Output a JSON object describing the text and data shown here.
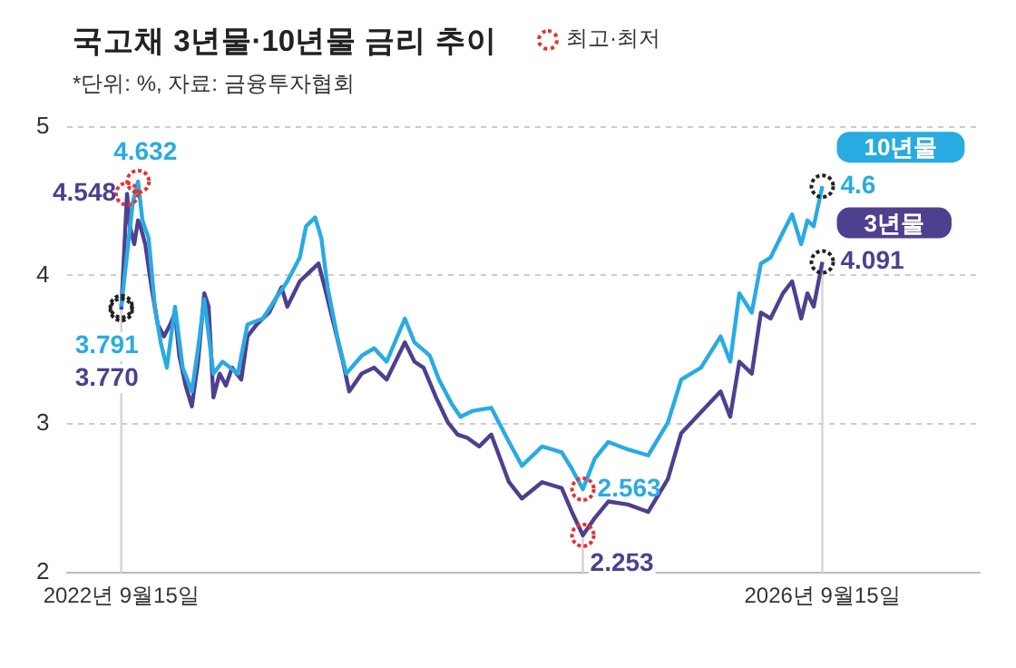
{
  "chart_data": {
    "type": "line",
    "title": "국고채 3년물·10년물 금리 추이",
    "subtitle": "*단위: %, 자료: 금융투자협회",
    "xlim": [
      "2022-05-26",
      "2027-08-09"
    ],
    "xticks": [
      {
        "value": "2022-09-15",
        "label": "2022년 9월15일"
      },
      {
        "value": "2026-09-15",
        "label": "2026년 9월15일"
      }
    ],
    "ylim": [
      2,
      5
    ],
    "yticks": [
      2,
      3,
      4,
      5
    ],
    "grid": "y",
    "legend": false,
    "marker": "none",
    "line_style": "solid",
    "ref_lines": [
      {
        "axis": "x",
        "value": "2022-09-15",
        "color": "#d4d4d4"
      },
      {
        "axis": "x",
        "value": "2025-05-04",
        "color": "#d4d4d4"
      },
      {
        "axis": "x",
        "value": "2026-09-15",
        "color": "#d4d4d4"
      }
    ],
    "series": [
      {
        "name": "10년물",
        "color": "#29abe2",
        "x": [
          "2022-09-15",
          "2022-10-09",
          "2022-10-20",
          "2022-10-29",
          "2022-11-11",
          "2022-11-24",
          "2022-12-06",
          "2022-12-19",
          "2023-01-05",
          "2023-01-21",
          "2023-02-09",
          "2023-02-22",
          "2023-03-07",
          "2023-03-26",
          "2023-04-14",
          "2023-05-16",
          "2023-06-05",
          "2023-07-07",
          "2023-08-02",
          "2023-08-27",
          "2023-09-22",
          "2023-10-05",
          "2023-10-24",
          "2023-11-06",
          "2023-11-19",
          "2023-12-09",
          "2023-12-28",
          "2024-01-29",
          "2024-02-24",
          "2024-03-21",
          "2024-04-28",
          "2024-05-18",
          "2024-06-19",
          "2024-07-08",
          "2024-08-03",
          "2024-08-22",
          "2024-09-17",
          "2024-10-25",
          "2024-12-01",
          "2024-12-28",
          "2025-02-08",
          "2025-03-21",
          "2025-04-11",
          "2025-05-04",
          "2025-05-29",
          "2025-06-26",
          "2025-08-06",
          "2025-09-17",
          "2025-10-28",
          "2025-11-25",
          "2026-01-05",
          "2026-02-15",
          "2026-03-07",
          "2026-03-26",
          "2026-04-21",
          "2026-05-10",
          "2026-05-30",
          "2026-06-25",
          "2026-07-14",
          "2026-08-02",
          "2026-08-15",
          "2026-08-28",
          "2026-09-15"
        ],
        "values": [
          3.791,
          4.49,
          4.632,
          4.37,
          4.25,
          3.79,
          3.55,
          3.38,
          3.79,
          3.38,
          3.22,
          3.51,
          3.84,
          3.34,
          3.42,
          3.34,
          3.67,
          3.71,
          3.84,
          3.96,
          4.12,
          4.33,
          4.39,
          4.25,
          3.92,
          3.59,
          3.34,
          3.46,
          3.51,
          3.42,
          3.71,
          3.55,
          3.46,
          3.3,
          3.14,
          3.05,
          3.09,
          3.11,
          2.88,
          2.72,
          2.85,
          2.81,
          2.7,
          2.563,
          2.77,
          2.88,
          2.83,
          2.79,
          3.01,
          3.3,
          3.38,
          3.59,
          3.42,
          3.88,
          3.75,
          4.08,
          4.12,
          4.29,
          4.41,
          4.21,
          4.37,
          4.33,
          4.6
        ]
      },
      {
        "name": "3년물",
        "color": "#4f3f8f",
        "x": [
          "2022-09-15",
          "2022-09-27",
          "2022-10-03",
          "2022-10-12",
          "2022-10-20",
          "2022-10-25",
          "2022-11-04",
          "2022-11-17",
          "2022-11-30",
          "2022-12-13",
          "2022-12-26",
          "2023-01-05",
          "2023-01-14",
          "2023-01-27",
          "2023-02-09",
          "2023-02-22",
          "2023-03-07",
          "2023-03-16",
          "2023-03-26",
          "2023-04-08",
          "2023-04-21",
          "2023-05-04",
          "2023-05-23",
          "2023-06-05",
          "2023-06-24",
          "2023-07-20",
          "2023-08-15",
          "2023-08-27",
          "2023-09-22",
          "2023-10-18",
          "2023-10-31",
          "2023-11-13",
          "2023-12-02",
          "2023-12-21",
          "2024-01-03",
          "2024-01-29",
          "2024-02-24",
          "2024-03-21",
          "2024-04-28",
          "2024-05-18",
          "2024-06-06",
          "2024-07-02",
          "2024-07-27",
          "2024-08-16",
          "2024-09-04",
          "2024-09-30",
          "2024-10-25",
          "2024-12-01",
          "2024-12-28",
          "2025-02-08",
          "2025-03-21",
          "2025-04-11",
          "2025-05-04",
          "2025-05-29",
          "2025-06-26",
          "2025-08-06",
          "2025-09-17",
          "2025-10-28",
          "2025-11-25",
          "2026-01-08",
          "2026-02-15",
          "2026-03-07",
          "2026-03-26",
          "2026-04-21",
          "2026-05-10",
          "2026-05-30",
          "2026-06-25",
          "2026-07-14",
          "2026-08-02",
          "2026-08-15",
          "2026-08-28",
          "2026-09-15"
        ],
        "values": [
          3.77,
          4.548,
          4.33,
          4.21,
          4.37,
          4.33,
          4.21,
          3.92,
          3.67,
          3.59,
          3.67,
          3.75,
          3.46,
          3.26,
          3.12,
          3.42,
          3.88,
          3.79,
          3.18,
          3.34,
          3.26,
          3.38,
          3.3,
          3.59,
          3.67,
          3.75,
          3.92,
          3.79,
          3.96,
          4.04,
          4.08,
          3.92,
          3.67,
          3.42,
          3.22,
          3.34,
          3.38,
          3.3,
          3.55,
          3.42,
          3.38,
          3.18,
          3.01,
          2.93,
          2.91,
          2.85,
          2.93,
          2.61,
          2.5,
          2.61,
          2.57,
          2.41,
          2.253,
          2.37,
          2.48,
          2.46,
          2.41,
          2.63,
          2.94,
          3.09,
          3.22,
          3.05,
          3.42,
          3.34,
          3.75,
          3.71,
          3.88,
          3.96,
          3.71,
          3.88,
          3.79,
          4.091
        ]
      }
    ],
    "annotations": [
      "최고·최저",
      {
        "text": "4.548",
        "x": "2022-09-27",
        "y": 4.548
      },
      {
        "text": "4.632",
        "x": "2022-10-20",
        "y": 4.632
      },
      {
        "text": "3.791",
        "x": "2022-09-15",
        "y": 3.791
      },
      {
        "text": "3.770",
        "x": "2022-09-15",
        "y": 3.77
      },
      {
        "text": "2.563",
        "x": "2025-05-04",
        "y": 2.563
      },
      {
        "text": "2.253",
        "x": "2025-05-04",
        "y": 2.253
      },
      {
        "text": "4.6",
        "x": "2026-09-15",
        "y": 4.6
      },
      {
        "text": "4.091",
        "x": "2026-09-15",
        "y": 4.091
      }
    ]
  }
}
